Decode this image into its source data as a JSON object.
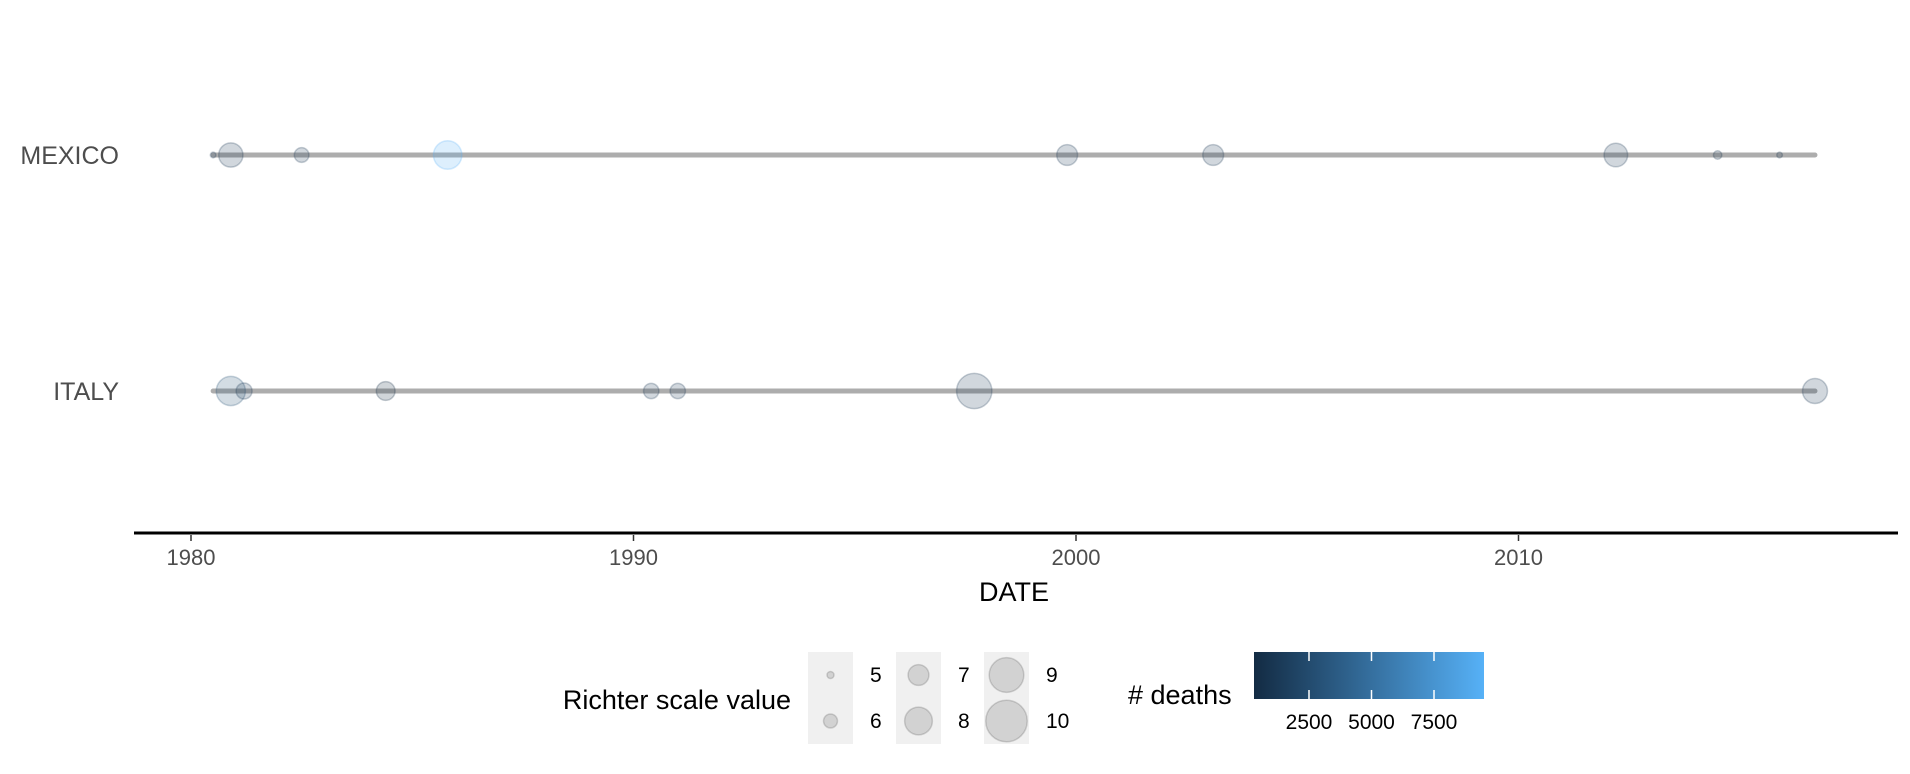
{
  "chart_data": {
    "type": "scatter",
    "title": "",
    "xlabel": "DATE",
    "ylabel": "",
    "xlim": [
      1978.8,
      2017.4
    ],
    "x_ticks": [
      "1980",
      "1990",
      "2000",
      "2010"
    ],
    "grid": false,
    "categories": [
      "MEXICO",
      "ITALY"
    ],
    "series": [
      {
        "name": "MEXICO",
        "timeline": [
          1980.5,
          2016.7
        ],
        "points": [
          {
            "x": 1980.5,
            "richter": 4.8,
            "deaths": 1200
          },
          {
            "x": 1980.9,
            "richter": 7.5,
            "deaths": 1200
          },
          {
            "x": 1982.5,
            "richter": 6.1,
            "deaths": 1200
          },
          {
            "x": 1985.8,
            "richter": 8.1,
            "deaths": 9500
          },
          {
            "x": 1999.8,
            "richter": 7.0,
            "deaths": 1200
          },
          {
            "x": 2003.1,
            "richter": 7.0,
            "deaths": 1200
          },
          {
            "x": 2012.2,
            "richter": 7.4,
            "deaths": 1200
          },
          {
            "x": 2014.5,
            "richter": 5.2,
            "deaths": 800
          },
          {
            "x": 2015.9,
            "richter": 4.8,
            "deaths": 800
          }
        ]
      },
      {
        "name": "ITALY",
        "timeline": [
          1980.5,
          2016.7
        ],
        "points": [
          {
            "x": 1980.9,
            "richter": 8.2,
            "deaths": 2700
          },
          {
            "x": 1981.2,
            "richter": 6.3,
            "deaths": 1200
          },
          {
            "x": 1984.4,
            "richter": 6.7,
            "deaths": 300
          },
          {
            "x": 1990.4,
            "richter": 6.2,
            "deaths": 1200
          },
          {
            "x": 1991.0,
            "richter": 6.2,
            "deaths": 1200
          },
          {
            "x": 1997.7,
            "richter": 9.1,
            "deaths": 1200
          },
          {
            "x": 2016.7,
            "richter": 7.6,
            "deaths": 1200
          }
        ]
      }
    ],
    "legend": {
      "placement": "bottom",
      "size_title": "Richter scale value",
      "size_values": [
        5,
        6,
        7,
        8,
        9,
        10
      ],
      "color_title": "# deaths",
      "color_breaks": [
        2500,
        5000,
        7500
      ],
      "color_range": [
        300,
        9500
      ],
      "color_low": "#132b43",
      "color_high": "#56b1f7"
    }
  }
}
